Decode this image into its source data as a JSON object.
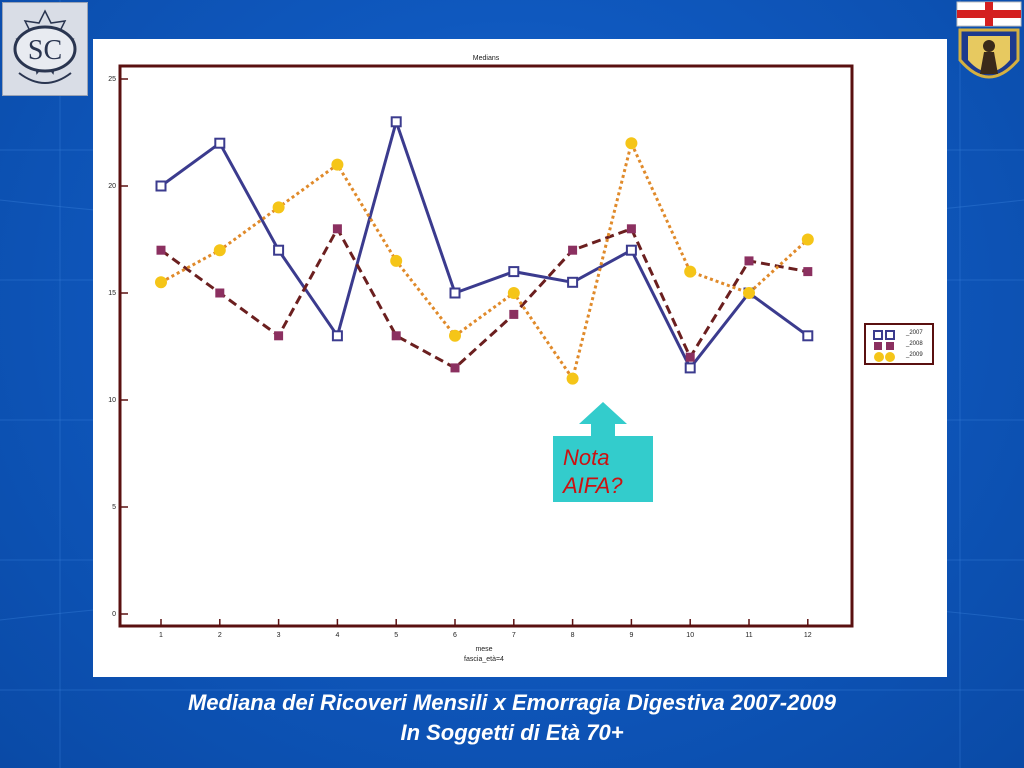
{
  "chart_data": {
    "type": "line",
    "title": "Medians",
    "xlabel": "mese",
    "xlabel2": "fascia_età=4",
    "ylabel": "",
    "categories": [
      "1",
      "2",
      "3",
      "4",
      "5",
      "6",
      "7",
      "8",
      "9",
      "10",
      "11",
      "12"
    ],
    "yticks": [
      "0",
      "5",
      "10",
      "15",
      "20",
      "25"
    ],
    "ylim": [
      0,
      25
    ],
    "grid": false,
    "legend_position": "right",
    "series": [
      {
        "name": "_2007",
        "color": "#3b3b8e",
        "marker": "open-square",
        "line": "solid",
        "values": [
          20,
          22,
          17,
          13,
          23,
          15,
          16,
          15.5,
          17,
          11.5,
          15,
          13
        ]
      },
      {
        "name": "_2008",
        "color": "#6b1f1f",
        "marker_color": "#8b3060",
        "marker": "filled-square",
        "line": "dashed",
        "values": [
          17,
          15,
          13,
          18,
          13,
          11.5,
          14,
          17,
          18,
          12,
          16.5,
          16
        ]
      },
      {
        "name": "_2009",
        "color": "#e08a2a",
        "marker_color": "#f5c518",
        "marker": "filled-circle",
        "line": "dotted",
        "values": [
          15.5,
          17,
          19,
          21,
          16.5,
          13,
          15,
          11,
          22,
          16,
          15,
          17.5
        ]
      }
    ]
  },
  "annotation": {
    "line1": "Nota",
    "line2": "AIFA?"
  },
  "caption": {
    "line1": "Mediana dei Ricoveri Mensili x Emorragia Digestiva 2007-2009",
    "line2": "In Soggetti di Età 70+"
  },
  "logos": {
    "left": "SC",
    "right_icon": "coat-of-arms-icon"
  },
  "colors": {
    "background": "#0f58be",
    "axis_frame": "#5a1010",
    "note_box": "#33cccc",
    "note_text": "#cc1111"
  }
}
